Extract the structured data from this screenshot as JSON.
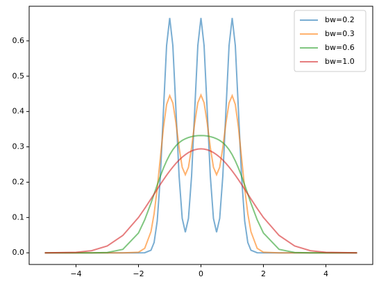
{
  "chart_data": {
    "type": "line",
    "x": [
      -5,
      -4,
      -3.5,
      -3,
      -2.5,
      -2,
      -1.8,
      -1.6,
      -1.5,
      -1.4,
      -1.3,
      -1.2,
      -1.1,
      -1,
      -0.9,
      -0.8,
      -0.7,
      -0.6,
      -0.5,
      -0.4,
      -0.3,
      -0.2,
      -0.1,
      0,
      0.1,
      0.2,
      0.3,
      0.4,
      0.5,
      0.6,
      0.7,
      0.8,
      0.9,
      1,
      1.1,
      1.2,
      1.3,
      1.4,
      1.5,
      1.6,
      1.8,
      2,
      2.5,
      3,
      3.5,
      4,
      5
    ],
    "series": [
      {
        "name": "bw=0.2",
        "color": "#1f77b4",
        "values": [
          0,
          0,
          0,
          0,
          0,
          0,
          0.0002,
          0.0074,
          0.0292,
          0.09,
          0.2159,
          0.4033,
          0.5868,
          0.6649,
          0.5868,
          0.4035,
          0.2174,
          0.0974,
          0.0584,
          0.0974,
          0.2174,
          0.4035,
          0.5868,
          0.6649,
          0.5868,
          0.4035,
          0.2174,
          0.0974,
          0.0584,
          0.0974,
          0.2174,
          0.4035,
          0.5868,
          0.6649,
          0.5868,
          0.4033,
          0.2159,
          0.09,
          0.0292,
          0.0074,
          0.0002,
          0,
          0,
          0,
          0,
          0,
          0
        ]
      },
      {
        "name": "bw=0.3",
        "color": "#ff7f0e",
        "values": [
          0,
          0,
          0,
          0,
          0,
          0.0017,
          0.0127,
          0.06,
          0.1106,
          0.1822,
          0.2689,
          0.3551,
          0.4199,
          0.445,
          0.4242,
          0.3676,
          0.298,
          0.2422,
          0.2211,
          0.2422,
          0.298,
          0.3678,
          0.4248,
          0.4467,
          0.4248,
          0.3678,
          0.298,
          0.2422,
          0.2211,
          0.2422,
          0.298,
          0.3676,
          0.4242,
          0.445,
          0.4199,
          0.3551,
          0.2689,
          0.1822,
          0.1106,
          0.06,
          0.0127,
          0.0017,
          0,
          0,
          0,
          0,
          0
        ]
      },
      {
        "name": "bw=0.6",
        "color": "#2ca02c",
        "values": [
          0,
          0,
          0,
          0.0009,
          0.0098,
          0.0561,
          0.0936,
          0.1407,
          0.1664,
          0.1921,
          0.2169,
          0.2399,
          0.2603,
          0.2777,
          0.292,
          0.3032,
          0.3118,
          0.3182,
          0.3229,
          0.3264,
          0.3289,
          0.3307,
          0.3318,
          0.3321,
          0.3318,
          0.3307,
          0.3289,
          0.3264,
          0.3229,
          0.3182,
          0.3118,
          0.3032,
          0.292,
          0.2777,
          0.2603,
          0.2399,
          0.2169,
          0.1921,
          0.1664,
          0.1407,
          0.0936,
          0.0561,
          0.0098,
          0.0009,
          0,
          0,
          0
        ]
      },
      {
        "name": "bw=1.0",
        "color": "#d62728",
        "values": [
          0,
          0.0015,
          0.0061,
          0.0195,
          0.0493,
          0.1001,
          0.1255,
          0.1526,
          0.1664,
          0.1801,
          0.1937,
          0.2069,
          0.2196,
          0.2317,
          0.2429,
          0.2533,
          0.2626,
          0.2708,
          0.2779,
          0.2838,
          0.2884,
          0.2917,
          0.2937,
          0.2943,
          0.2937,
          0.2917,
          0.2884,
          0.2838,
          0.2779,
          0.2708,
          0.2626,
          0.2533,
          0.2429,
          0.2317,
          0.2196,
          0.2069,
          0.1937,
          0.1801,
          0.1664,
          0.1526,
          0.1255,
          0.1001,
          0.0493,
          0.0195,
          0.0061,
          0.0015,
          0
        ]
      }
    ],
    "alpha": 0.6,
    "xlim": [
      -5.5,
      5.5
    ],
    "ylim": [
      -0.033,
      0.698
    ],
    "xticks": [
      {
        "value": -4,
        "label": "−4"
      },
      {
        "value": -2,
        "label": "−2"
      },
      0,
      2,
      4
    ],
    "yticks": [
      {
        "value": 0,
        "label": "0.0"
      },
      0.1,
      0.2,
      0.3,
      0.4,
      0.5,
      0.6
    ],
    "legend": "upper right"
  }
}
